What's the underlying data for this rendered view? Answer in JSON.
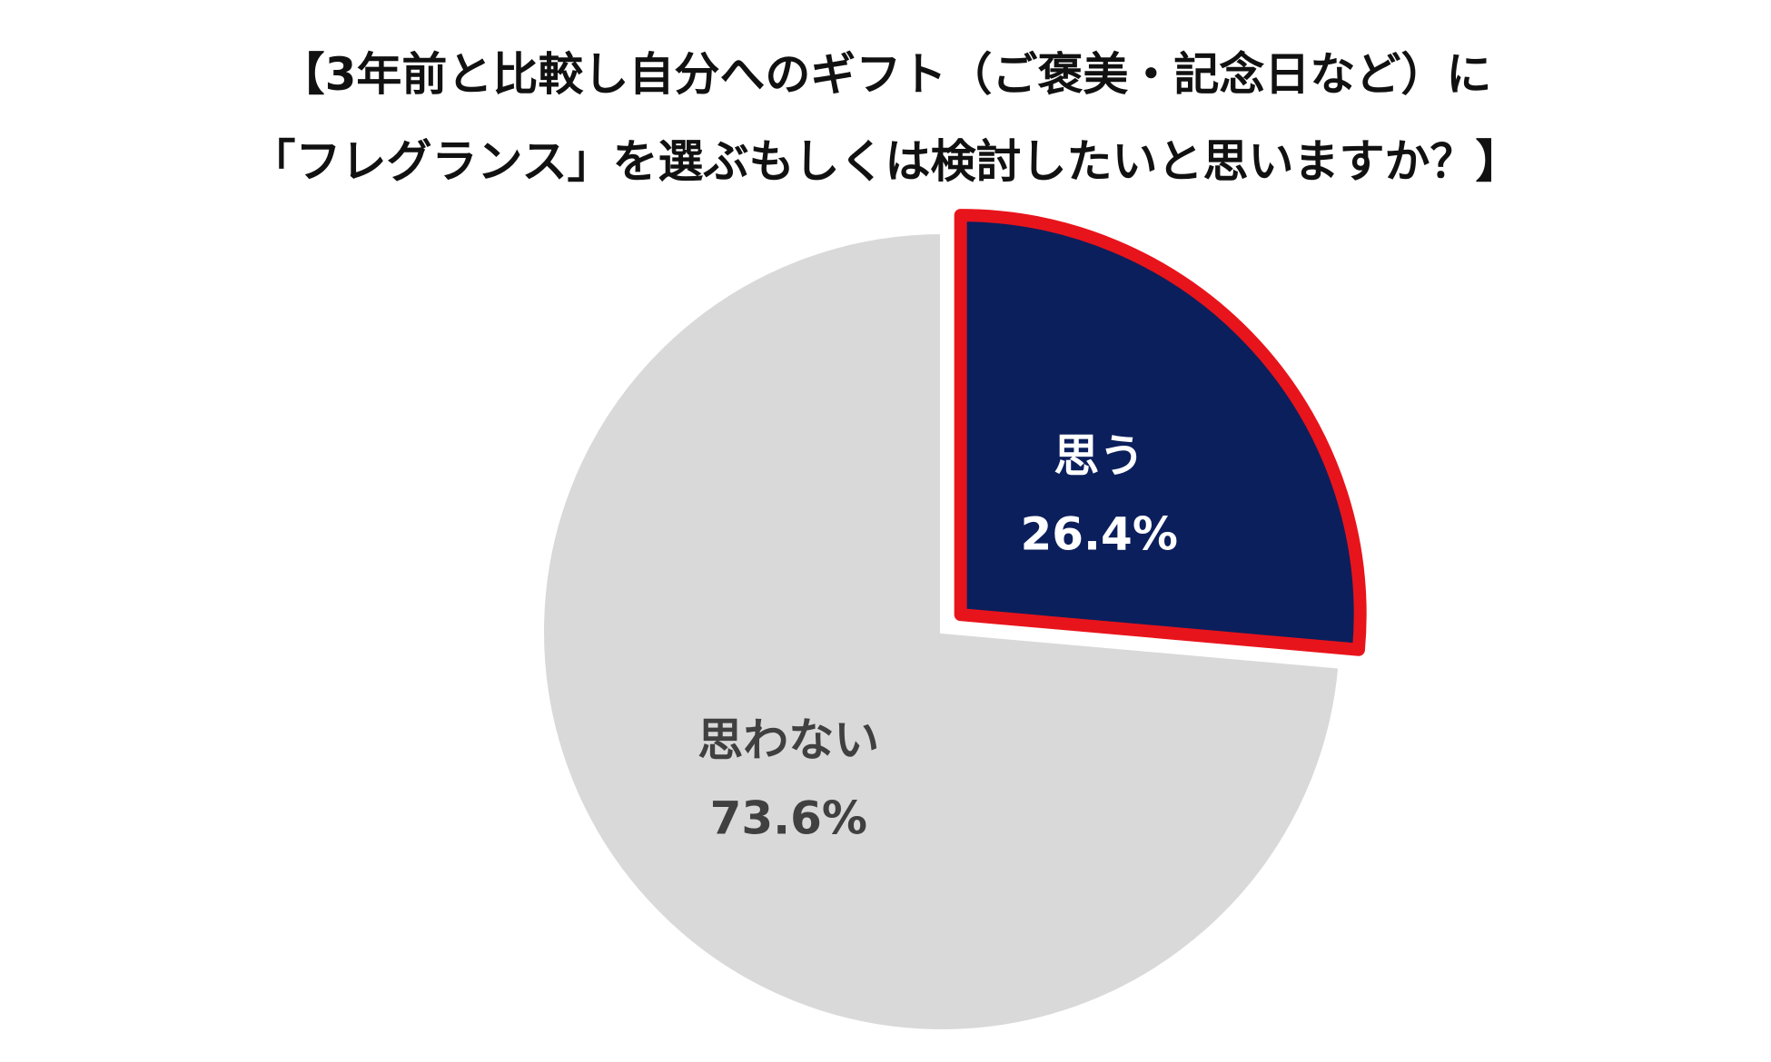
{
  "title": {
    "line1": "【3年前と比較し自分へのギフト（ご褒美・記念日など）に",
    "line2": "「フレグランス」を選ぶもしくは検討したいと思いますか？】"
  },
  "chart_data": {
    "type": "pie",
    "title": "【3年前と比較し自分へのギフト（ご褒美・記念日など）に「フレグランス」を選ぶもしくは検討したいと思いますか？】",
    "slices": [
      {
        "label": "思う",
        "value": 26.4,
        "value_label": "26.4%",
        "color": "#0b1f5c",
        "border_color": "#e8141b",
        "label_color": "#ffffff",
        "exploded": true
      },
      {
        "label": "思わない",
        "value": 73.6,
        "value_label": "73.6%",
        "color": "#d9d9d9",
        "label_color": "#404040",
        "exploded": false
      }
    ],
    "start_angle": "12 o'clock",
    "direction": "clockwise",
    "legend": "none"
  }
}
